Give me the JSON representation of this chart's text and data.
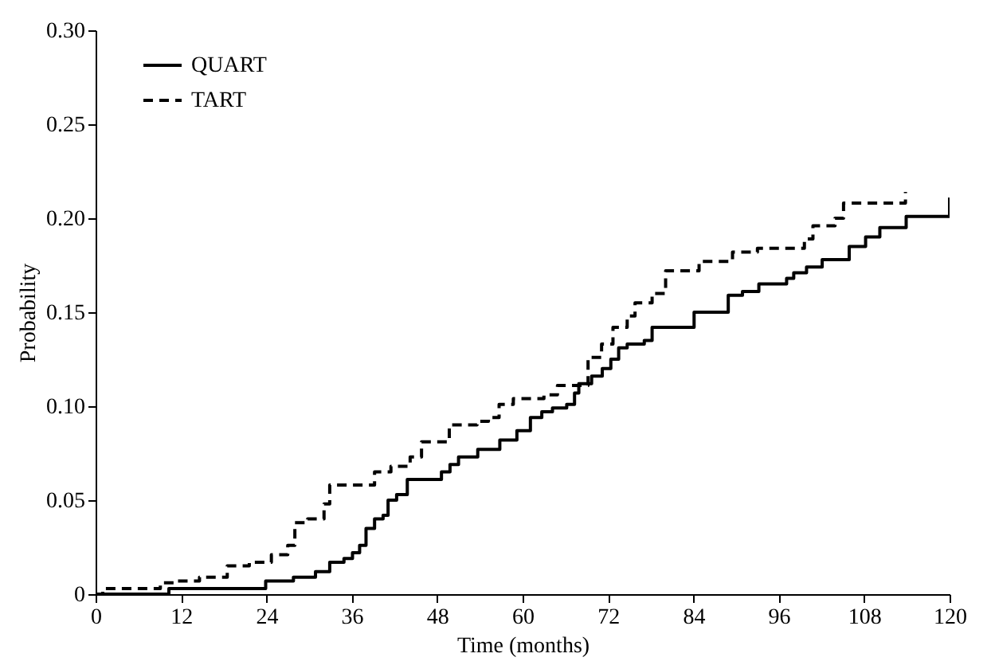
{
  "chart_data": {
    "type": "step",
    "xlabel": "Time (months)",
    "ylabel": "Probability",
    "xlim": [
      0,
      120
    ],
    "xticks": [
      0,
      12,
      24,
      36,
      48,
      60,
      72,
      84,
      96,
      108,
      120
    ],
    "ylim": [
      0,
      0.3
    ],
    "yticks": [
      {
        "value": 0,
        "label": "0"
      },
      0.05,
      {
        "value": 0.1,
        "label": "0.10"
      },
      0.15,
      {
        "value": 0.2,
        "label": "0.20"
      },
      0.25,
      {
        "value": 0.3,
        "label": "0.30"
      }
    ],
    "grid": false,
    "legend": "top left",
    "marker": "none",
    "series": [
      {
        "name": "QUART",
        "color": "#000000",
        "line_style": "solid",
        "x": [
          0,
          10.3,
          23.9,
          27.8,
          30.9,
          32.9,
          34.9,
          36.1,
          37.1,
          38.0,
          39.2,
          40.4,
          41.1,
          42.3,
          43.8,
          48.6,
          49.8,
          51.0,
          53.7,
          56.8,
          59.2,
          61.1,
          62.7,
          64.2,
          66.2,
          67.3,
          67.9,
          69.7,
          71.2,
          72.4,
          73.5,
          74.7,
          77.1,
          78.2,
          84.1,
          88.9,
          90.9,
          93.2,
          97.1,
          98.1,
          99.9,
          102.1,
          105.9,
          108.2,
          110.2,
          113.9,
          120,
          120
        ],
        "values": [
          0,
          0.003,
          0.007,
          0.009,
          0.012,
          0.017,
          0.019,
          0.022,
          0.026,
          0.035,
          0.04,
          0.042,
          0.05,
          0.053,
          0.061,
          0.065,
          0.069,
          0.073,
          0.077,
          0.082,
          0.087,
          0.094,
          0.097,
          0.099,
          0.101,
          0.107,
          0.112,
          0.116,
          0.12,
          0.125,
          0.131,
          0.133,
          0.135,
          0.142,
          0.15,
          0.159,
          0.161,
          0.165,
          0.168,
          0.171,
          0.174,
          0.178,
          0.185,
          0.19,
          0.195,
          0.201,
          0.201,
          0.211
        ]
      },
      {
        "name": "TART",
        "color": "#000000",
        "line_style": "dashed",
        "x": [
          0,
          1,
          9.1,
          11.4,
          14.6,
          18.5,
          21.6,
          24.7,
          27.0,
          28.0,
          29.8,
          32.1,
          32.9,
          39.2,
          41.5,
          44.2,
          45.8,
          49.7,
          53.6,
          55.2,
          56.7,
          58.7,
          63.0,
          64.9,
          69.2,
          71.1,
          72.7,
          74.7,
          75.8,
          78.2,
          80.1,
          84.8,
          89.5,
          93.0,
          99.6,
          100.8,
          103.9,
          105.1,
          113.8
        ],
        "values": [
          0,
          0.003,
          0.006,
          0.007,
          0.009,
          0.015,
          0.017,
          0.021,
          0.026,
          0.038,
          0.04,
          0.048,
          0.058,
          0.065,
          0.068,
          0.073,
          0.081,
          0.09,
          0.092,
          0.094,
          0.101,
          0.104,
          0.106,
          0.111,
          0.126,
          0.133,
          0.142,
          0.148,
          0.155,
          0.16,
          0.172,
          0.177,
          0.182,
          0.184,
          0.189,
          0.196,
          0.2,
          0.208,
          0.214
        ]
      }
    ]
  }
}
